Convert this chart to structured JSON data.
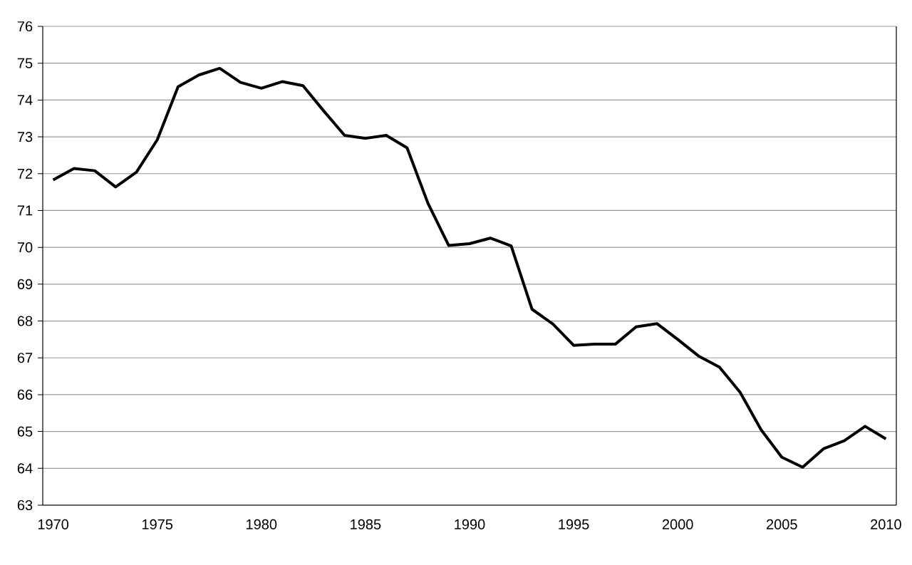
{
  "chart_data": {
    "type": "line",
    "categories": [
      "1970",
      null,
      null,
      null,
      null,
      "1975",
      null,
      null,
      null,
      null,
      "1980",
      null,
      null,
      null,
      null,
      "1985",
      null,
      null,
      null,
      null,
      "1990",
      null,
      null,
      null,
      null,
      "1995",
      null,
      null,
      null,
      null,
      "2000",
      null,
      null,
      null,
      null,
      "2005",
      null,
      null,
      null,
      null,
      "2010"
    ],
    "values": [
      71.83,
      72.14,
      72.08,
      71.64,
      72.04,
      72.92,
      74.36,
      74.68,
      74.86,
      74.48,
      74.32,
      74.5,
      74.39,
      73.7,
      73.04,
      72.96,
      73.04,
      72.7,
      71.2,
      70.05,
      70.1,
      70.25,
      70.04,
      68.32,
      67.92,
      67.34,
      67.37,
      67.37,
      67.84,
      67.93,
      67.5,
      67.05,
      66.75,
      66.06,
      65.05,
      64.3,
      64.03,
      64.53,
      64.75,
      65.14,
      64.8
    ],
    "color": "#000000",
    "ylim": [
      63,
      76
    ],
    "yticks": [
      63,
      64,
      65,
      66,
      67,
      68,
      69,
      70,
      71,
      72,
      73,
      74,
      75,
      76
    ],
    "grid": "y",
    "marker": "none",
    "line_style": "solid"
  }
}
